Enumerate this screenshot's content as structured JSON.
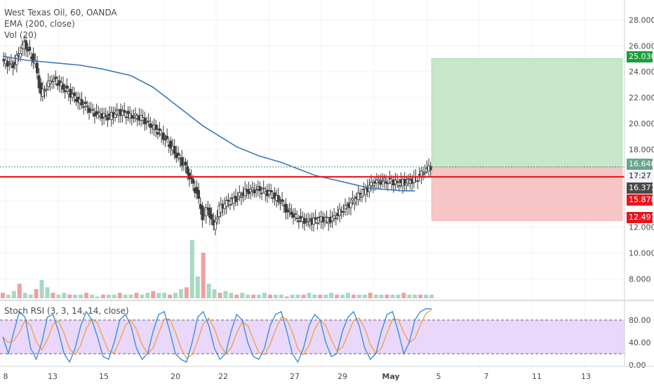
{
  "legend": {
    "symbol": "West Texas Oil, 60, OANDA",
    "ema": "EMA (200, close)",
    "vol": "Vol (20)",
    "stoch": "Stoch RSI (3, 3, 14, 14, close)"
  },
  "price_axis": {
    "ticks": [
      "28.000",
      "26.000",
      "24.000",
      "22.000",
      "20.000",
      "18.000",
      "12.000",
      "10.000",
      "8.000"
    ]
  },
  "stoch_axis": {
    "ticks": [
      "80.00",
      "40.00",
      "0.00"
    ],
    "upper_band": 80,
    "lower_band": 20
  },
  "time_axis": {
    "labels": [
      "8",
      "13",
      "15",
      "20",
      "22",
      "27",
      "29",
      "May",
      "5",
      "7",
      "11",
      "13"
    ]
  },
  "price_tags": [
    {
      "label": "25.030",
      "color": "#1b9e3e"
    },
    {
      "label": "16.646",
      "color": "#6aa58a"
    },
    {
      "label": "16.371",
      "color": "#4a4a4a"
    },
    {
      "label": "15.878",
      "color": "#e8141b"
    },
    {
      "label": "12.491",
      "color": "#e8141b"
    }
  ],
  "countdown": "17:27",
  "position": {
    "target": 25.03,
    "entry": 16.646,
    "stop": 12.491,
    "horizontal_line": 15.878,
    "profit_color": "#c8e6c9",
    "loss_color": "#f7c5c5"
  },
  "chart_data": {
    "type": "candlestick",
    "title": "West Texas Oil, 60, OANDA",
    "ylim": [
      6.5,
      29
    ],
    "series": [
      {
        "name": "EMA (200, close)",
        "color": "#3d78b5",
        "points": [
          [
            0,
            25.2
          ],
          [
            4,
            24.9
          ],
          [
            9,
            24.7
          ],
          [
            14,
            24.5
          ],
          [
            18,
            24.2
          ],
          [
            23,
            23.7
          ],
          [
            27,
            22.8
          ],
          [
            30,
            21.8
          ],
          [
            33,
            20.8
          ],
          [
            36,
            19.8
          ],
          [
            39,
            19.0
          ],
          [
            42,
            18.2
          ],
          [
            46,
            17.5
          ],
          [
            50,
            17.0
          ],
          [
            53,
            16.5
          ],
          [
            56,
            16.0
          ],
          [
            60,
            15.6
          ],
          [
            63,
            15.3
          ],
          [
            66,
            15.0
          ],
          [
            69,
            14.9
          ],
          [
            72,
            14.8
          ],
          [
            74,
            14.8
          ]
        ]
      },
      {
        "name": "Price",
        "color": "#3a3a3a",
        "points": [
          [
            0,
            24.8
          ],
          [
            2,
            24.5
          ],
          [
            4,
            26.2
          ],
          [
            6,
            24.6
          ],
          [
            7,
            22.2
          ],
          [
            9,
            23.5
          ],
          [
            11,
            22.8
          ],
          [
            13,
            22.0
          ],
          [
            15,
            21.3
          ],
          [
            17,
            20.7
          ],
          [
            19,
            20.5
          ],
          [
            21,
            20.9
          ],
          [
            23,
            20.6
          ],
          [
            25,
            20.4
          ],
          [
            27,
            19.8
          ],
          [
            29,
            19.0
          ],
          [
            31,
            17.8
          ],
          [
            33,
            16.6
          ],
          [
            34,
            15.5
          ],
          [
            35,
            14.6
          ],
          [
            36,
            12.8
          ],
          [
            37,
            13.5
          ],
          [
            38,
            12.0
          ],
          [
            39,
            13.4
          ],
          [
            40,
            13.8
          ],
          [
            42,
            14.2
          ],
          [
            44,
            14.8
          ],
          [
            46,
            14.9
          ],
          [
            48,
            14.6
          ],
          [
            50,
            14.0
          ],
          [
            51,
            13.4
          ],
          [
            53,
            12.7
          ],
          [
            55,
            12.4
          ],
          [
            57,
            12.6
          ],
          [
            59,
            12.5
          ],
          [
            60,
            12.9
          ],
          [
            62,
            13.6
          ],
          [
            64,
            14.4
          ],
          [
            66,
            15.1
          ],
          [
            67,
            15.5
          ],
          [
            69,
            15.6
          ],
          [
            71,
            15.4
          ],
          [
            73,
            15.5
          ],
          [
            75,
            15.9
          ],
          [
            76,
            16.4
          ],
          [
            77,
            16.65
          ]
        ]
      }
    ],
    "volume": [
      0.3,
      0.2,
      0.4,
      0.8,
      0.3,
      0.2,
      0.5,
      1.0,
      0.6,
      0.3,
      0.2,
      0.3,
      0.2,
      0.2,
      0.2,
      0.3,
      0.2,
      0.1,
      0.2,
      0.2,
      0.2,
      0.3,
      0.2,
      0.2,
      0.3,
      0.2,
      0.3,
      0.4,
      0.3,
      0.3,
      0.2,
      0.3,
      0.5,
      0.6,
      3.2,
      1.2,
      2.5,
      0.8,
      0.5,
      0.3,
      0.4,
      0.3,
      0.2,
      0.3,
      0.2,
      0.2,
      0.2,
      0.3,
      0.2,
      0.2,
      0.2,
      0.1,
      0.2,
      0.2,
      0.2,
      0.3,
      0.2,
      0.2,
      0.2,
      0.3,
      0.2,
      0.2,
      0.3,
      0.2,
      0.2,
      0.2,
      0.3,
      0.2,
      0.2,
      0.2,
      0.2,
      0.2,
      0.3,
      0.2,
      0.2,
      0.2,
      0.2,
      0.2
    ],
    "stoch_rsi": [
      50,
      20,
      60,
      95,
      85,
      30,
      10,
      40,
      85,
      90,
      60,
      20,
      5,
      30,
      70,
      95,
      80,
      50,
      15,
      10,
      40,
      80,
      90,
      70,
      30,
      10,
      20,
      60,
      90,
      95,
      60,
      20,
      10,
      5,
      40,
      85,
      95,
      70,
      30,
      10,
      20,
      60,
      90,
      80,
      40,
      15,
      10,
      30,
      70,
      90,
      95,
      60,
      20,
      5,
      30,
      70,
      90,
      80,
      40,
      15,
      20,
      60,
      85,
      95,
      70,
      30,
      10,
      20,
      60,
      90,
      95,
      60,
      20,
      40,
      80,
      95,
      100,
      100
    ]
  }
}
